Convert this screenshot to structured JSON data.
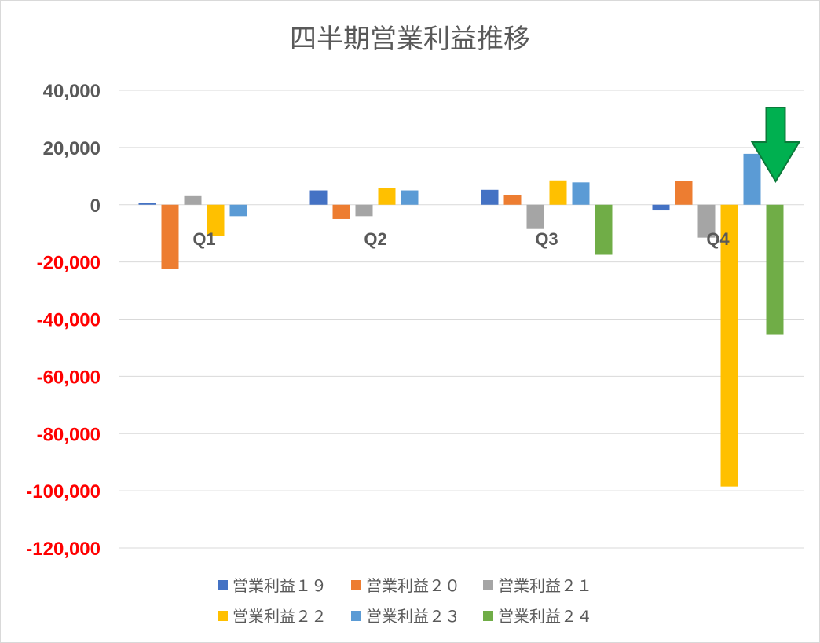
{
  "chart_data": {
    "type": "bar",
    "title": "四半期営業利益推移",
    "categories": [
      "Q1",
      "Q2",
      "Q3",
      "Q4"
    ],
    "series": [
      {
        "name": "営業利益１９",
        "color": "#4472C4",
        "values": [
          500,
          5000,
          5200,
          -2000
        ]
      },
      {
        "name": "営業利益２０",
        "color": "#ED7D31",
        "values": [
          -22500,
          -5000,
          3500,
          8200
        ]
      },
      {
        "name": "営業利益２１",
        "color": "#A5A5A5",
        "values": [
          3000,
          -4000,
          -8500,
          -11500
        ]
      },
      {
        "name": "営業利益２２",
        "color": "#FFC000",
        "values": [
          -11000,
          5800,
          8500,
          -98500
        ]
      },
      {
        "name": "営業利益２３",
        "color": "#5B9BD5",
        "values": [
          -4000,
          5000,
          7800,
          17800
        ]
      },
      {
        "name": "営業利益２４",
        "color": "#70AD47",
        "values": [
          null,
          null,
          -17500,
          -45500
        ]
      }
    ],
    "ylim": [
      -120000,
      40000
    ],
    "yticks": [
      40000,
      20000,
      0,
      -20000,
      -40000,
      -60000,
      -80000,
      -100000,
      -120000
    ],
    "ytick_labels": [
      "40,000",
      "20,000",
      "0",
      "-20,000",
      "-40,000",
      "-60,000",
      "-80,000",
      "-100,000",
      "-120,000"
    ],
    "negative_label_color": "#FF0000",
    "positive_label_color": "#595959",
    "grid": true,
    "legend_position": "bottom",
    "annotation": {
      "type": "arrow",
      "direction": "down",
      "color": "#00B050",
      "target": "Q4 営業利益２４"
    }
  }
}
